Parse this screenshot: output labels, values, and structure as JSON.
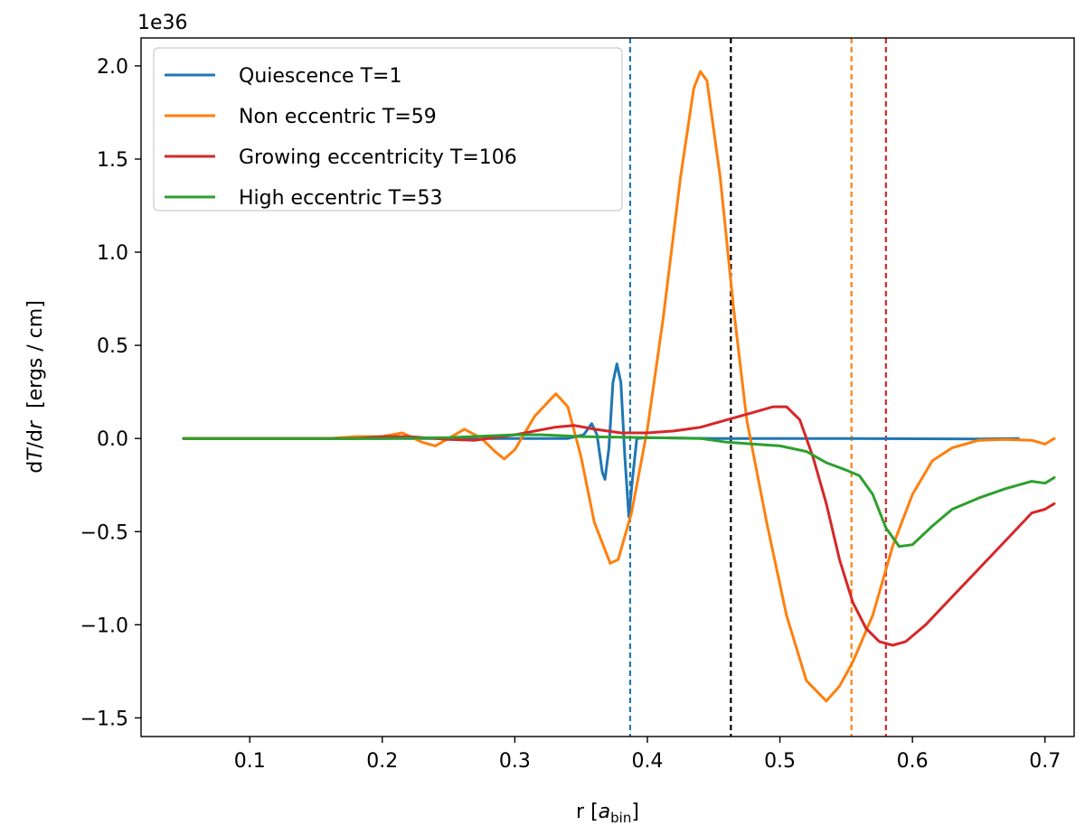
{
  "chart_data": {
    "type": "line",
    "scale_offset": "1e36",
    "xlabel": {
      "main": "r [",
      "var": "a",
      "sub": "bin",
      "close": "]"
    },
    "ylabel": {
      "pre": "d",
      "var": "T",
      "mid": "/d",
      "var2": "r",
      "post": "  [ergs / cm]"
    },
    "xlim": [
      0.018,
      0.722
    ],
    "ylim": [
      -1.6,
      2.15
    ],
    "xticks": [
      {
        "value": 0.1,
        "label": "0.1"
      },
      {
        "value": 0.2,
        "label": "0.2"
      },
      {
        "value": 0.3,
        "label": "0.3"
      },
      {
        "value": 0.4,
        "label": "0.4"
      },
      {
        "value": 0.5,
        "label": "0.5"
      },
      {
        "value": 0.6,
        "label": "0.6"
      },
      {
        "value": 0.7,
        "label": "0.7"
      }
    ],
    "yticks": [
      {
        "value": -1.5,
        "label": "−1.5"
      },
      {
        "value": -1.0,
        "label": "−1.0"
      },
      {
        "value": -0.5,
        "label": "−0.5"
      },
      {
        "value": 0.0,
        "label": "0.0"
      },
      {
        "value": 0.5,
        "label": "0.5"
      },
      {
        "value": 1.0,
        "label": "1.0"
      },
      {
        "value": 1.5,
        "label": "1.5"
      },
      {
        "value": 2.0,
        "label": "2.0"
      }
    ],
    "grid": false,
    "legend_position": "top-left",
    "series": [
      {
        "name": "Quiescence T=1",
        "color": "#1f77b4",
        "points": [
          [
            0.05,
            0
          ],
          [
            0.3,
            0
          ],
          [
            0.34,
            0.0
          ],
          [
            0.352,
            0.02
          ],
          [
            0.358,
            0.08
          ],
          [
            0.362,
            0.02
          ],
          [
            0.366,
            -0.18
          ],
          [
            0.368,
            -0.22
          ],
          [
            0.371,
            -0.05
          ],
          [
            0.374,
            0.3
          ],
          [
            0.377,
            0.4
          ],
          [
            0.38,
            0.3
          ],
          [
            0.383,
            -0.1
          ],
          [
            0.386,
            -0.42
          ],
          [
            0.389,
            -0.2
          ],
          [
            0.392,
            0.0
          ],
          [
            0.4,
            0.005
          ],
          [
            0.45,
            0.0
          ],
          [
            0.55,
            0.0
          ],
          [
            0.65,
            -0.003
          ],
          [
            0.68,
            0.0
          ]
        ]
      },
      {
        "name": "Non eccentric  T=59",
        "color": "#ff7f0e",
        "points": [
          [
            0.05,
            0
          ],
          [
            0.16,
            0
          ],
          [
            0.18,
            0.01
          ],
          [
            0.2,
            0.01
          ],
          [
            0.215,
            0.03
          ],
          [
            0.23,
            -0.02
          ],
          [
            0.24,
            -0.04
          ],
          [
            0.25,
            0.0
          ],
          [
            0.262,
            0.05
          ],
          [
            0.275,
            0.0
          ],
          [
            0.285,
            -0.07
          ],
          [
            0.292,
            -0.11
          ],
          [
            0.3,
            -0.06
          ],
          [
            0.315,
            0.12
          ],
          [
            0.331,
            0.24
          ],
          [
            0.34,
            0.17
          ],
          [
            0.35,
            -0.1
          ],
          [
            0.36,
            -0.45
          ],
          [
            0.372,
            -0.67
          ],
          [
            0.378,
            -0.65
          ],
          [
            0.388,
            -0.4
          ],
          [
            0.4,
            0.05
          ],
          [
            0.412,
            0.65
          ],
          [
            0.425,
            1.4
          ],
          [
            0.435,
            1.88
          ],
          [
            0.44,
            1.97
          ],
          [
            0.445,
            1.92
          ],
          [
            0.455,
            1.4
          ],
          [
            0.465,
            0.7
          ],
          [
            0.475,
            0.1
          ],
          [
            0.49,
            -0.45
          ],
          [
            0.505,
            -0.95
          ],
          [
            0.52,
            -1.3
          ],
          [
            0.535,
            -1.41
          ],
          [
            0.545,
            -1.33
          ],
          [
            0.555,
            -1.2
          ],
          [
            0.57,
            -0.95
          ],
          [
            0.585,
            -0.58
          ],
          [
            0.6,
            -0.3
          ],
          [
            0.615,
            -0.12
          ],
          [
            0.63,
            -0.05
          ],
          [
            0.65,
            -0.01
          ],
          [
            0.67,
            -0.005
          ],
          [
            0.69,
            -0.01
          ],
          [
            0.7,
            -0.03
          ],
          [
            0.707,
            0.0
          ]
        ]
      },
      {
        "name": "Growing eccentricity  T=106",
        "color": "#d62728",
        "points": [
          [
            0.05,
            0
          ],
          [
            0.18,
            0
          ],
          [
            0.2,
            0.01
          ],
          [
            0.22,
            0.01
          ],
          [
            0.25,
            -0.005
          ],
          [
            0.27,
            -0.01
          ],
          [
            0.3,
            0.02
          ],
          [
            0.33,
            0.06
          ],
          [
            0.345,
            0.07
          ],
          [
            0.36,
            0.05
          ],
          [
            0.38,
            0.03
          ],
          [
            0.4,
            0.03
          ],
          [
            0.42,
            0.04
          ],
          [
            0.44,
            0.06
          ],
          [
            0.46,
            0.1
          ],
          [
            0.48,
            0.14
          ],
          [
            0.495,
            0.17
          ],
          [
            0.505,
            0.17
          ],
          [
            0.515,
            0.1
          ],
          [
            0.525,
            -0.1
          ],
          [
            0.535,
            -0.35
          ],
          [
            0.545,
            -0.65
          ],
          [
            0.555,
            -0.88
          ],
          [
            0.565,
            -1.02
          ],
          [
            0.575,
            -1.09
          ],
          [
            0.585,
            -1.11
          ],
          [
            0.595,
            -1.09
          ],
          [
            0.61,
            -1.0
          ],
          [
            0.63,
            -0.85
          ],
          [
            0.65,
            -0.7
          ],
          [
            0.67,
            -0.55
          ],
          [
            0.69,
            -0.4
          ],
          [
            0.7,
            -0.38
          ],
          [
            0.707,
            -0.35
          ]
        ]
      },
      {
        "name": "High eccentric  T=53",
        "color": "#2ca02c",
        "points": [
          [
            0.05,
            0
          ],
          [
            0.2,
            0
          ],
          [
            0.25,
            0.005
          ],
          [
            0.3,
            0.02
          ],
          [
            0.32,
            0.02
          ],
          [
            0.35,
            0.01
          ],
          [
            0.4,
            0.005
          ],
          [
            0.44,
            0.0
          ],
          [
            0.46,
            -0.02
          ],
          [
            0.48,
            -0.03
          ],
          [
            0.5,
            -0.04
          ],
          [
            0.52,
            -0.07
          ],
          [
            0.535,
            -0.13
          ],
          [
            0.55,
            -0.17
          ],
          [
            0.56,
            -0.2
          ],
          [
            0.57,
            -0.3
          ],
          [
            0.58,
            -0.48
          ],
          [
            0.59,
            -0.58
          ],
          [
            0.6,
            -0.57
          ],
          [
            0.615,
            -0.47
          ],
          [
            0.63,
            -0.38
          ],
          [
            0.65,
            -0.32
          ],
          [
            0.67,
            -0.27
          ],
          [
            0.69,
            -0.23
          ],
          [
            0.7,
            -0.24
          ],
          [
            0.707,
            -0.21
          ]
        ]
      }
    ],
    "vlines": [
      {
        "x": 0.387,
        "color": "#1f77b4"
      },
      {
        "x": 0.463,
        "color": "#000000"
      },
      {
        "x": 0.554,
        "color": "#ff7f0e"
      },
      {
        "x": 0.58,
        "color": "#d62728"
      }
    ]
  }
}
